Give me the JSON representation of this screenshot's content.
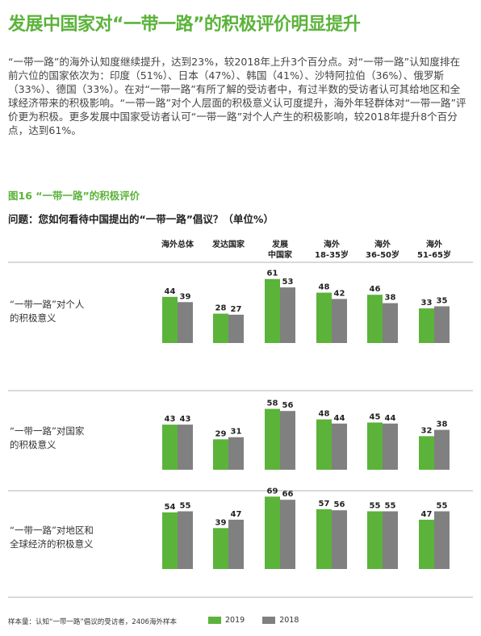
{
  "title": "发展中国家对“一带一路”的积极评价明显提升",
  "intro": "“一带一路”的海外认知度继续提升，达到23%，较2018年上升3个百分点。对“一带一路”认知度排在前六位的国家依次为：印度（51%）、日本（47%）、韩国（41%）、沙特阿拉伯（36%）、俄罗斯（33%）、德国（33%）。在对“一带一路”有所了解的受访者中，有过半数的受访者认可其给地区和全球经济带来的积极影响。“一带一路”对个人层面的积极意义认可度提升，海外年轻群体对“一带一路”评价更为积极。更多发展中国家受访者认可“一带一路”对个人产生的积极影响，较2018年提升8个百分点，达到61%。",
  "figure_label": "图16 “一带一路”的积极评价",
  "question": "问题：您如何看待中国提出的“一带一路”倡议？（单位%）",
  "colors": {
    "accent": "#5bb33a",
    "series_2019": "#5bb33a",
    "series_2018": "#808080"
  },
  "chart_data": {
    "type": "bar",
    "columns": [
      [
        "海外总体"
      ],
      [
        "发达国家"
      ],
      [
        "发展",
        "中国家"
      ],
      [
        "海外",
        "18-35岁"
      ],
      [
        "海外",
        "36-50岁"
      ],
      [
        "海外",
        "51-65岁"
      ]
    ],
    "groups": [
      {
        "label": [
          "“一带一路”对个人",
          "的积极意义"
        ],
        "series": [
          {
            "name": "2019",
            "values": [
              44,
              28,
              61,
              48,
              46,
              33
            ]
          },
          {
            "name": "2018",
            "values": [
              39,
              27,
              53,
              42,
              38,
              35
            ]
          }
        ]
      },
      {
        "label": [
          "“一带一路”对国家",
          "的积极意义"
        ],
        "series": [
          {
            "name": "2019",
            "values": [
              43,
              29,
              58,
              48,
              45,
              32
            ]
          },
          {
            "name": "2018",
            "values": [
              43,
              31,
              56,
              44,
              44,
              38
            ]
          }
        ]
      },
      {
        "label": [
          "“一带一路”对地区和",
          "全球经济的积极意义"
        ],
        "series": [
          {
            "name": "2019",
            "values": [
              54,
              39,
              69,
              57,
              55,
              47
            ]
          },
          {
            "name": "2018",
            "values": [
              55,
              47,
              66,
              56,
              55,
              55
            ]
          }
        ]
      }
    ],
    "legend": [
      "2019",
      "2018"
    ],
    "legend_position": "bottom-right"
  },
  "footer_note": "样本量：认知“一带一路”倡议的受访者，2406海外样本"
}
